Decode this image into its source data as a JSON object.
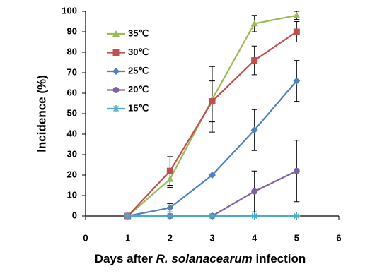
{
  "chart_data": {
    "type": "line",
    "xlabel": [
      "Days after",
      "R. solanacearum",
      "infection"
    ],
    "ylabel": "Incidence (%)",
    "x": [
      1,
      2,
      3,
      4,
      5
    ],
    "xlim": [
      0,
      6
    ],
    "xticks": [
      0,
      1,
      2,
      3,
      4,
      5,
      6
    ],
    "ylim": [
      0,
      100
    ],
    "yticks": [
      0,
      10,
      20,
      30,
      40,
      50,
      60,
      70,
      80,
      90,
      100
    ],
    "grid": false,
    "legend": "upper left",
    "series": [
      {
        "name": "35℃",
        "color": "#9bbb59",
        "marker": "triangle",
        "values": [
          0,
          18,
          57,
          94,
          98
        ],
        "errors": [
          null,
          4,
          16,
          4,
          2
        ]
      },
      {
        "name": "30℃",
        "color": "#c0504d",
        "marker": "square",
        "values": [
          0,
          22,
          56,
          76,
          90
        ],
        "errors": [
          null,
          7,
          10,
          7,
          5
        ]
      },
      {
        "name": "25℃",
        "color": "#4f81bd",
        "marker": "diamond",
        "values": [
          0,
          4,
          20,
          42,
          66
        ],
        "errors": [
          null,
          2,
          null,
          10,
          10
        ]
      },
      {
        "name": "20℃",
        "color": "#8064a2",
        "marker": "circle",
        "values": [
          0,
          0,
          0,
          12,
          22
        ],
        "errors": [
          null,
          null,
          null,
          10,
          15
        ]
      },
      {
        "name": "15℃",
        "color": "#4bacc6",
        "marker": "star",
        "values": [
          0,
          0,
          0,
          0,
          0
        ],
        "errors": [
          null,
          null,
          null,
          null,
          null
        ]
      }
    ]
  }
}
